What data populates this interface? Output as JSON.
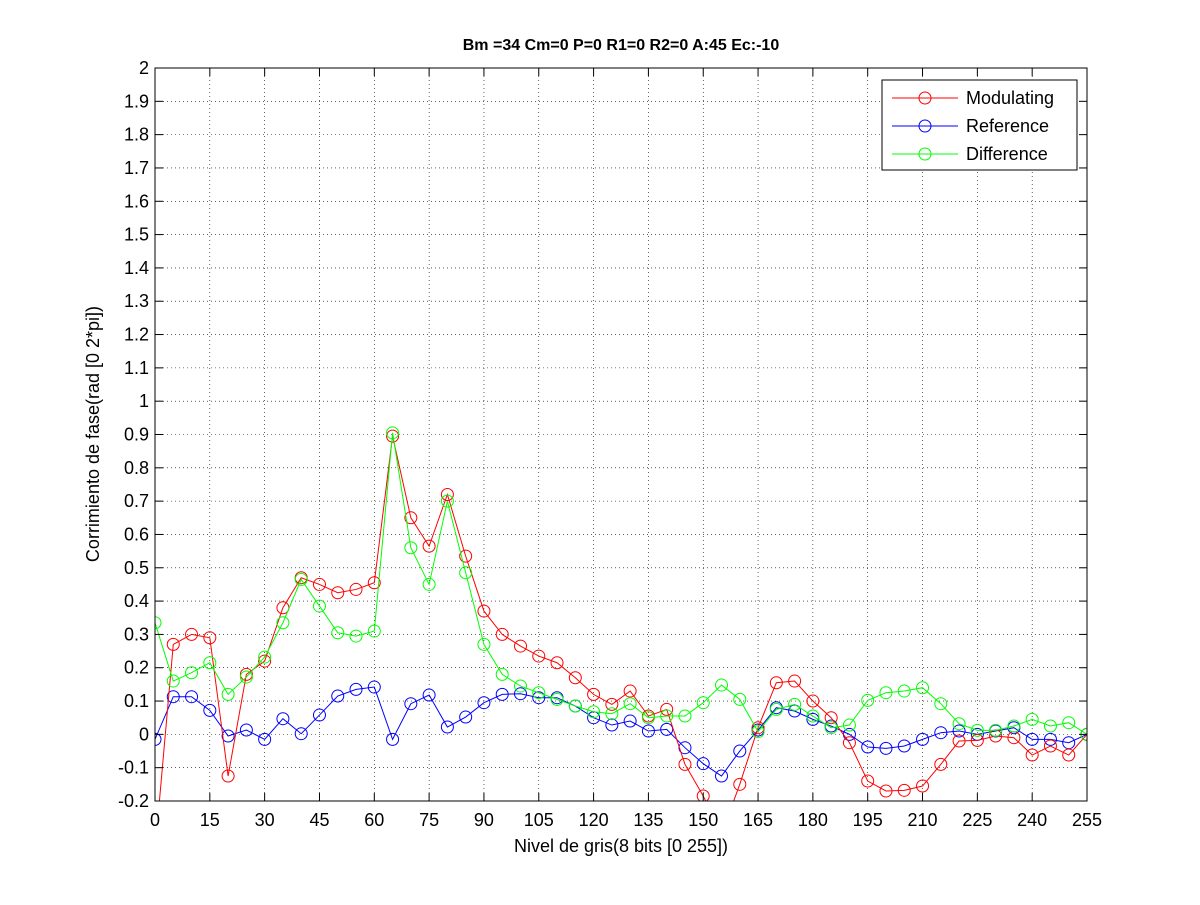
{
  "chart_data": {
    "type": "line",
    "title": "Bm =34  Cm=0  P=0  R1=0  R2=0  A:45  Ec:-10",
    "xlabel": "Nivel de gris(8 bits [0 255])",
    "ylabel": "Corrimiento de fase(rad [0 2*pi])",
    "xlim": [
      0,
      255
    ],
    "ylim": [
      -0.2,
      2
    ],
    "x_ticks": [
      0,
      15,
      30,
      45,
      60,
      75,
      90,
      105,
      120,
      135,
      150,
      165,
      180,
      195,
      210,
      225,
      240,
      255
    ],
    "y_ticks": [
      -0.2,
      -0.1,
      0,
      0.1,
      0.2,
      0.3,
      0.4,
      0.5,
      0.6,
      0.7,
      0.8,
      0.9,
      1,
      1.1,
      1.2,
      1.3,
      1.4,
      1.5,
      1.6,
      1.7,
      1.8,
      1.9,
      2
    ],
    "y_tick_labels": [
      "-0.2",
      "-0.1",
      "0",
      "0.1",
      "0.2",
      "0.3",
      "0.4",
      "0.5",
      "0.6",
      "0.7",
      "0.8",
      "0.9",
      "1",
      "1.1",
      "1.2",
      "1.3",
      "1.4",
      "1.5",
      "1.6",
      "1.7",
      "1.8",
      "1.9",
      "2"
    ],
    "grid": true,
    "grid_style": "dotted",
    "marker": "circle",
    "legend_position": "top-right",
    "x": [
      0,
      5,
      10,
      15,
      20,
      25,
      30,
      35,
      40,
      45,
      50,
      55,
      60,
      65,
      70,
      75,
      80,
      85,
      90,
      95,
      100,
      105,
      110,
      115,
      120,
      125,
      130,
      135,
      140,
      145,
      150,
      155,
      160,
      165,
      170,
      175,
      180,
      185,
      190,
      195,
      200,
      205,
      210,
      215,
      220,
      225,
      230,
      235,
      240,
      245,
      250,
      255
    ],
    "series": [
      {
        "name": "Modulating",
        "color": "#ff0000",
        "values": [
          -0.35,
          0.27,
          0.3,
          0.29,
          -0.125,
          0.18,
          0.22,
          0.38,
          0.47,
          0.45,
          0.425,
          0.435,
          0.455,
          0.895,
          0.65,
          0.565,
          0.72,
          0.535,
          0.37,
          0.3,
          0.265,
          0.235,
          0.215,
          0.17,
          0.12,
          0.09,
          0.13,
          0.055,
          0.075,
          -0.09,
          -0.185,
          -0.3,
          -0.15,
          0.02,
          0.155,
          0.16,
          0.1,
          0.05,
          -0.025,
          -0.14,
          -0.17,
          -0.168,
          -0.155,
          -0.09,
          -0.02,
          -0.018,
          -0.005,
          -0.01,
          -0.062,
          -0.035,
          -0.062,
          0
        ]
      },
      {
        "name": "Reference",
        "color": "#0000ff",
        "values": [
          -0.015,
          0.113,
          0.113,
          0.072,
          -0.005,
          0.013,
          -0.015,
          0.047,
          0.002,
          0.058,
          0.115,
          0.135,
          0.142,
          -0.015,
          0.092,
          0.118,
          0.022,
          0.052,
          0.095,
          0.12,
          0.122,
          0.11,
          0.11,
          0.085,
          0.05,
          0.028,
          0.04,
          0.01,
          0.015,
          -0.04,
          -0.088,
          -0.125,
          -0.05,
          0.013,
          0.08,
          0.07,
          0.045,
          0.025,
          0.0,
          -0.038,
          -0.042,
          -0.035,
          -0.015,
          0.005,
          0.01,
          0.0,
          0.01,
          0.02,
          -0.015,
          -0.015,
          -0.025,
          0
        ]
      },
      {
        "name": "Difference",
        "color": "#00ff00",
        "values": [
          0.335,
          0.16,
          0.185,
          0.215,
          0.12,
          0.172,
          0.232,
          0.335,
          0.465,
          0.385,
          0.305,
          0.295,
          0.31,
          0.905,
          0.56,
          0.45,
          0.7,
          0.485,
          0.27,
          0.18,
          0.145,
          0.125,
          0.105,
          0.085,
          0.068,
          0.062,
          0.092,
          0.05,
          0.055,
          0.055,
          0.095,
          0.148,
          0.105,
          0.008,
          0.075,
          0.09,
          0.055,
          0.02,
          0.028,
          0.102,
          0.125,
          0.13,
          0.14,
          0.092,
          0.032,
          0.012,
          0.012,
          0.025,
          0.045,
          0.025,
          0.035,
          0.0
        ]
      }
    ]
  }
}
